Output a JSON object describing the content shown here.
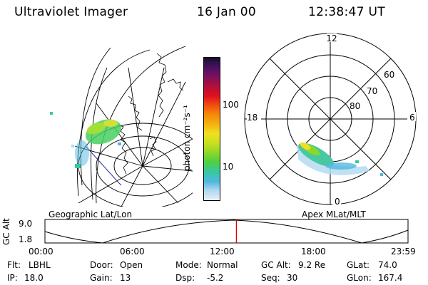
{
  "header": {
    "title": "Ultraviolet Imager",
    "date": "16 Jan 00",
    "time": "12:38:47 UT"
  },
  "panels": {
    "left_caption": "Geographic Lat/Lon",
    "right_caption": "Apex MLat/MLT"
  },
  "colorbar": {
    "unit_label": "photon cm⁻²s⁻¹",
    "ticks": [
      "100",
      "10"
    ],
    "colors": [
      "#151030",
      "#4a1060",
      "#7a1060",
      "#b0103a",
      "#e01020",
      "#f04a10",
      "#f58a0a",
      "#f5b410",
      "#f0e020",
      "#c8e020",
      "#8ad828",
      "#50d040",
      "#38c8a0",
      "#50b8e0",
      "#b0d8f0",
      "#e8eef5"
    ]
  },
  "polar": {
    "mlt_labels": [
      "12",
      "18",
      "6",
      "0"
    ],
    "lat_labels": [
      "60",
      "70",
      "80"
    ]
  },
  "altitude_plot": {
    "ylabel": "GC Alt",
    "y_ticks": [
      "9.0",
      "1.8"
    ],
    "x_ticks": [
      "00:00",
      "06:00",
      "12:00",
      "18:00",
      "23:59"
    ],
    "current_time_marker": "12:38:47",
    "marker_color": "#e00000"
  },
  "info": {
    "flt_label": "Flt:",
    "flt_value": "LBHL",
    "ip_label": "IP:",
    "ip_value": "18.0",
    "door_label": "Door:",
    "door_value": "Open",
    "gain_label": "Gain:",
    "gain_value": "13",
    "mode_label": "Mode:",
    "mode_value": "Normal",
    "dsp_label": "Dsp:",
    "dsp_value": "-5.2",
    "gcalt_label": "GC Alt:",
    "gcalt_value": "9.2 Re",
    "seq_label": "Seq:",
    "seq_value": "30",
    "glat_label": "GLat:",
    "glat_value": "74.0",
    "glon_label": "GLon:",
    "glon_value": "167.4"
  }
}
